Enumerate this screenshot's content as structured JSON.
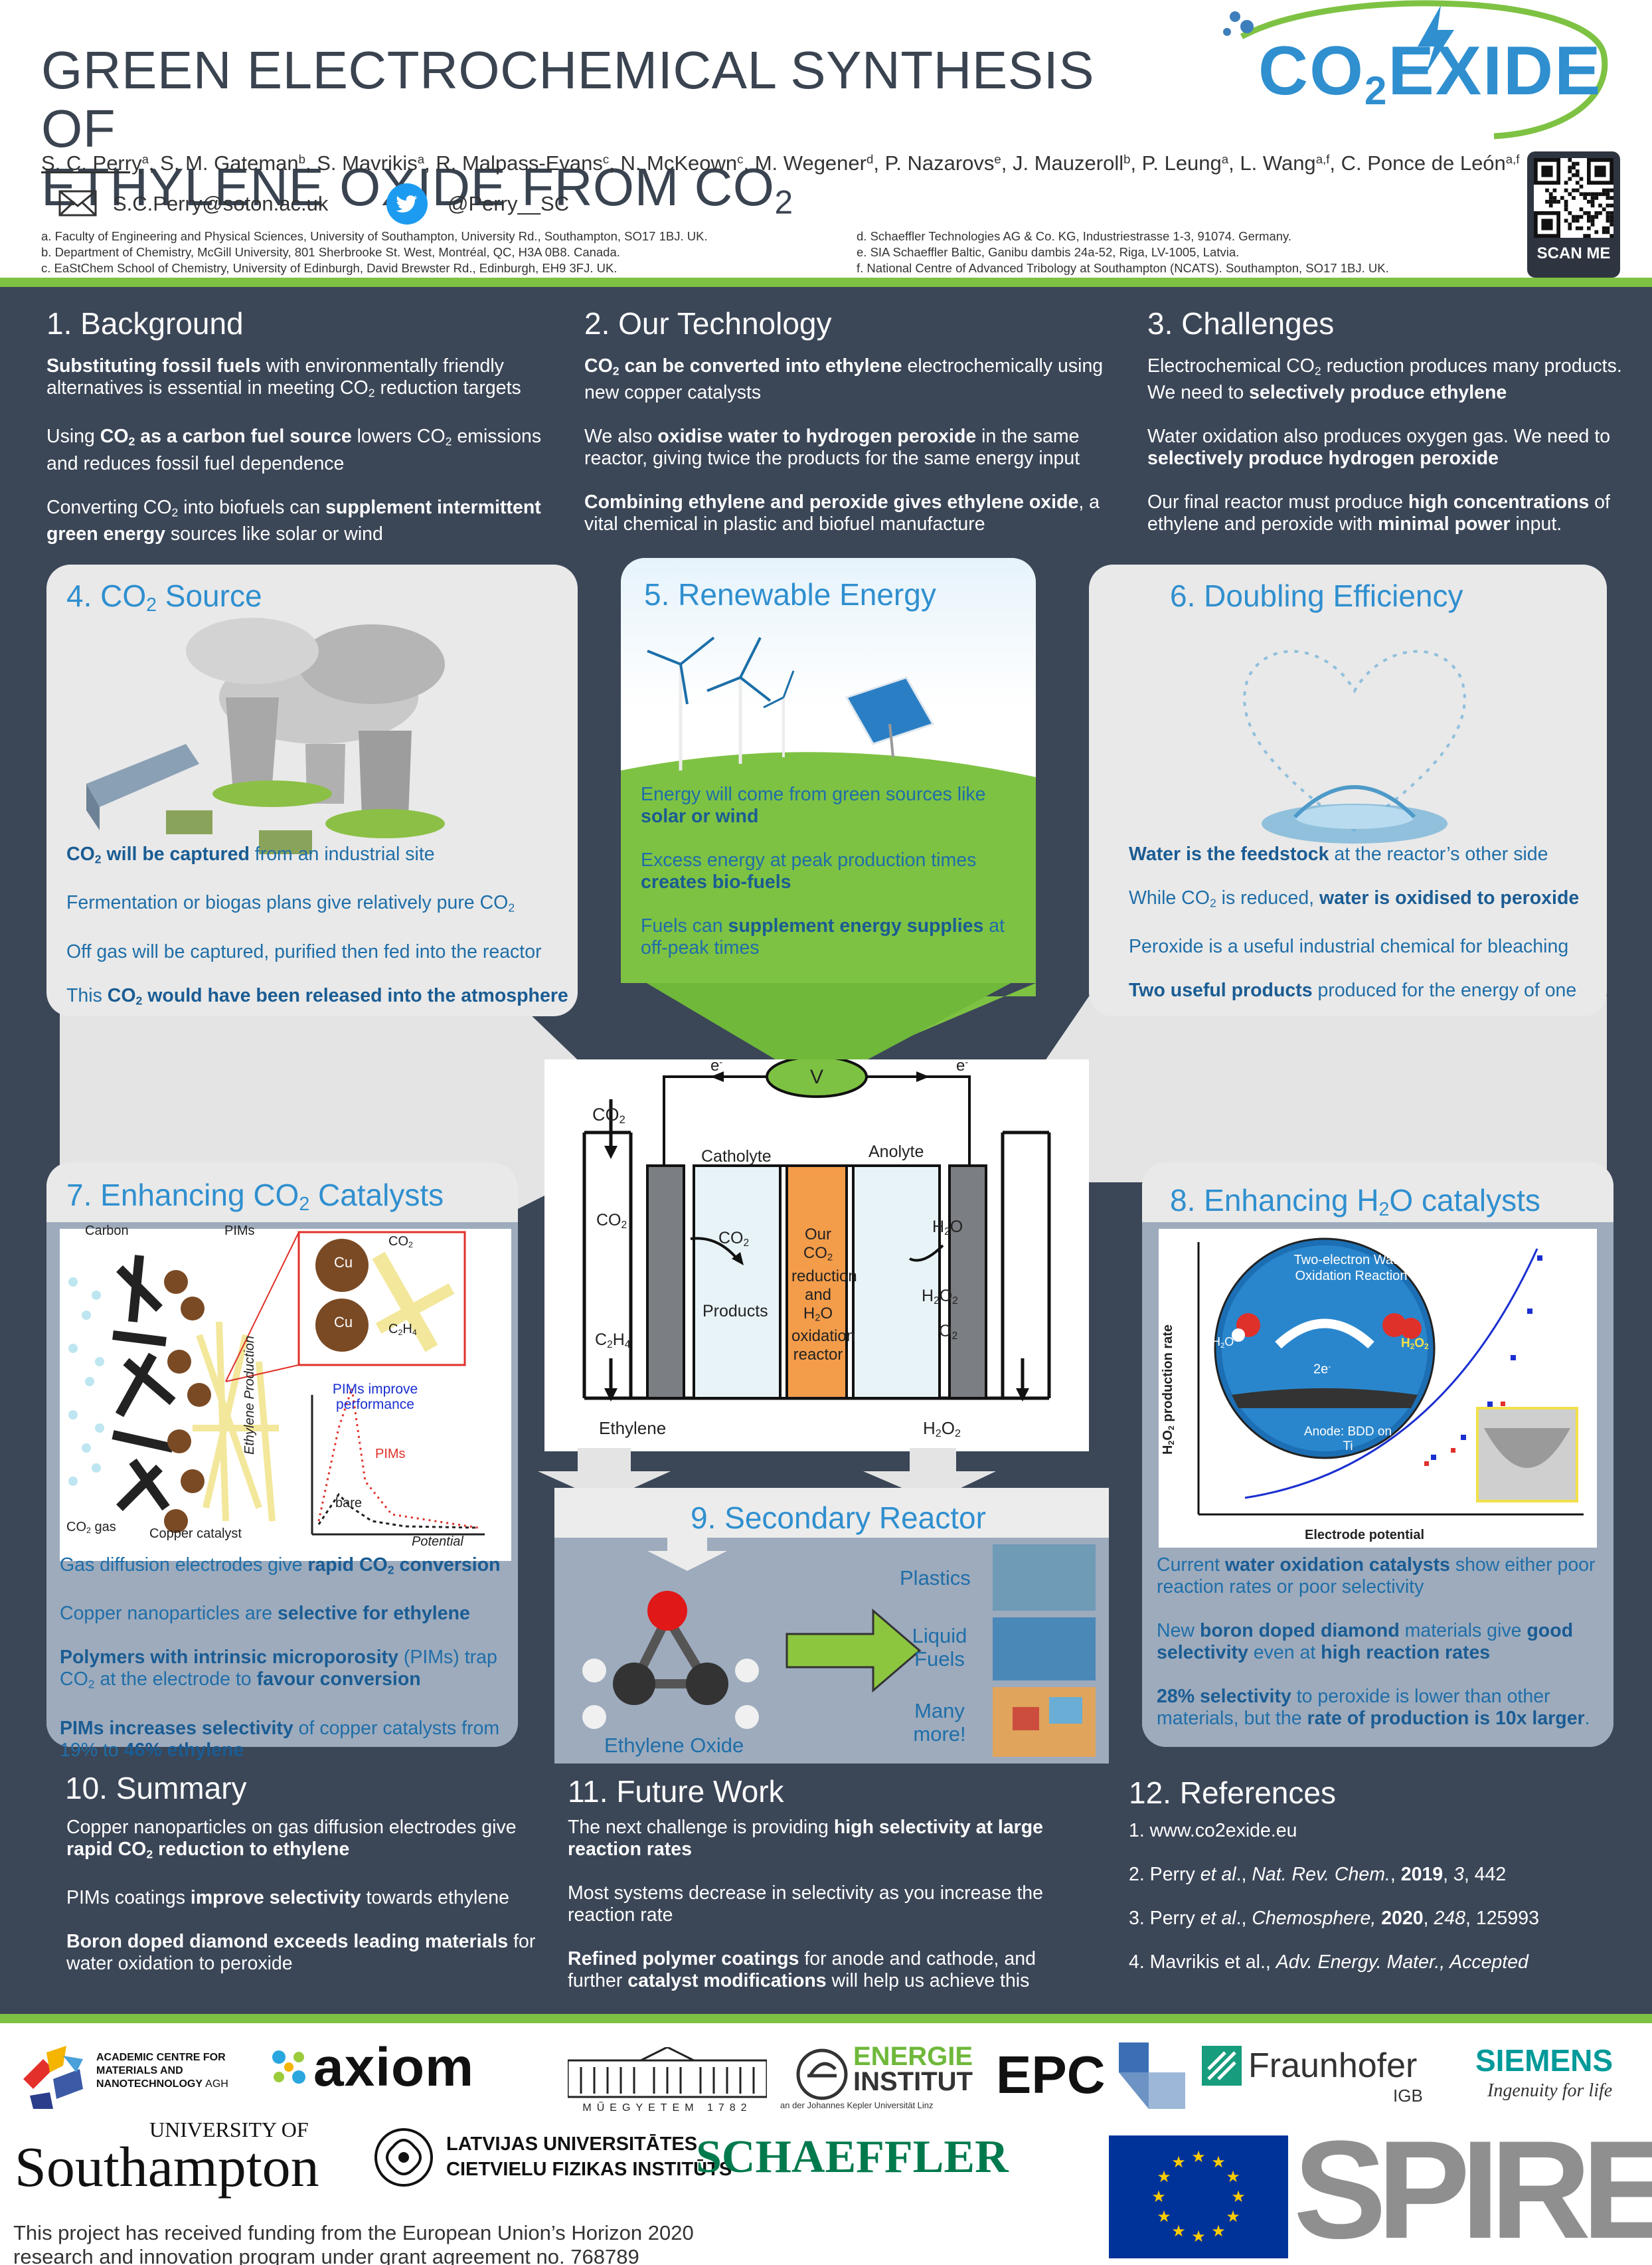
{
  "header": {
    "title_line1": "GREEN ELECTROCHEMICAL SYNTHESIS OF",
    "title_line2_main": "ETHYLENE OXIDE FROM CO",
    "title_line2_sub": "2",
    "authors": [
      {
        "name": "S. C. Perry",
        "aff": "a"
      },
      {
        "name": "S. M. Gateman",
        "aff": "b"
      },
      {
        "name": "S. Mavrikis",
        "aff": "a"
      },
      {
        "name": "R. Malpass-Evans",
        "aff": "c"
      },
      {
        "name": "N. McKeown",
        "aff": "c"
      },
      {
        "name": "M. Wegener",
        "aff": "d"
      },
      {
        "name": "P. Nazarovs",
        "aff": "e"
      },
      {
        "name": "J. Mauzeroll",
        "aff": "b"
      },
      {
        "name": "P. Leung",
        "aff": "a"
      },
      {
        "name": "L. Wang",
        "aff": "a,f"
      },
      {
        "name": "C. Ponce de León",
        "aff": "a,f"
      }
    ],
    "email": "S.C.Perry@soton.ac.uk",
    "twitter": "@Perry__SC",
    "affiliations_left": [
      "a. Faculty of Engineering and Physical Sciences, University of Southampton, University Rd., Southampton, SO17 1BJ.  UK.",
      "b. Department of Chemistry, McGill University, 801 Sherbrooke St. West, Montréal, QC, H3A 0B8. Canada.",
      "c. EaStChem School of Chemistry, University of Edinburgh, David Brewster Rd., Edinburgh, EH9 3FJ. UK."
    ],
    "affiliations_right": [
      "d. Schaeffler Technologies AG & Co. KG, Industriestrasse 1-3, 91074. Germany.",
      "e. SIA Schaeffler Baltic, Ganibu dambis 24a-52, Riga, LV-1005, Latvia.",
      "f. National Centre of Advanced Tribology at Southampton (NCATS). Southampton, SO17 1BJ.  UK."
    ],
    "logo": {
      "co": "CO",
      "sub": "2",
      "exide": "EXIDE"
    },
    "scan_me": "SCAN ME"
  },
  "sections": {
    "s1": {
      "heading": "1. Background"
    },
    "s2": {
      "heading": "2. Our Technology"
    },
    "s3": {
      "heading": "3. Challenges"
    },
    "s4": {
      "heading_main": "4. CO",
      "heading_sub": "2",
      "heading_tail": " Source"
    },
    "s5": {
      "heading": "5. Renewable Energy"
    },
    "s6": {
      "heading": "6. Doubling Efficiency"
    },
    "s7": {
      "heading_main": "7. Enhancing CO",
      "heading_sub": "2",
      "heading_tail": " Catalysts"
    },
    "s8": {
      "heading_main": "8. Enhancing H",
      "heading_sub": "2",
      "heading_tail": "O catalysts"
    },
    "s9": {
      "heading": "9. Secondary Reactor"
    },
    "s10": {
      "heading": "10. Summary"
    },
    "s11": {
      "heading": "11. Future Work"
    },
    "s12": {
      "heading": "12. References"
    }
  },
  "reactor": {
    "co2_in": "CO2",
    "voltmeter": "V",
    "e_left": "e",
    "e_right": "e",
    "catholyte": "Catholyte",
    "anolyte": "Anolyte",
    "center_label": "Our CO2 reduction and H2O oxidation reactor",
    "products": "Products",
    "ethylene": "Ethylene",
    "h2o2_out": "H2O2"
  },
  "fig7": {
    "carbon": "Carbon",
    "pims": "PIMs",
    "co2_gas": "CO2 gas",
    "copper_catalyst": "Copper catalyst",
    "cu": "Cu",
    "ylabel": "Ethylene Production",
    "xlabel": "Potential",
    "pims_improve": "PIMs improve performance",
    "pims_curve": "PIMs",
    "bare": "bare"
  },
  "fig8": {
    "ylabel": "H2O2 production rate",
    "xlabel": "Electrode potential",
    "circle_title": "Two-electron Water Oxidation Reaction",
    "anode": "Anode: BDD on Ti",
    "e2": "2e"
  },
  "fig9": {
    "plastics": "Plastics",
    "liquid_fuels": "Liquid Fuels",
    "many_more": "Many more!",
    "ethylene_oxide": "Ethylene Oxide"
  },
  "logos": {
    "agh": "ACADEMIC CENTRE FOR MATERIALS AND NANOTECHNOLOGY",
    "agh_tag": "AGH",
    "axiom": "axiom",
    "muegyetem": "MŰEGYETEM 1782",
    "energie": "ENERGIE",
    "institut": "INSTITUT",
    "energie_sub": "an der Johannes Kepler Universität Linz",
    "epc": "EPC",
    "fraunhofer": "Fraunhofer",
    "igb": "IGB",
    "siemens": "SIEMENS",
    "siemens_tag": "Ingenuity for life",
    "southampton_top": "UNIVERSITY OF",
    "southampton": "Southampton",
    "latvia1": "LATVIJAS UNIVERSITĀTES",
    "latvia2": "CIETVIELU FIZIKAS INSTITŪTS",
    "schaeffler": "SCHAEFFLER",
    "spire": "SPIRE"
  },
  "footer": {
    "line1": "This project has received funding from the European Union’s Horizon 2020",
    "line2": "research and innovation program under grant agreement no. 768789"
  },
  "colors": {
    "panel": "#3b4657",
    "green": "#7ec243",
    "heading_blue": "#2f8fcf",
    "text_blue": "#1f6ea8"
  }
}
